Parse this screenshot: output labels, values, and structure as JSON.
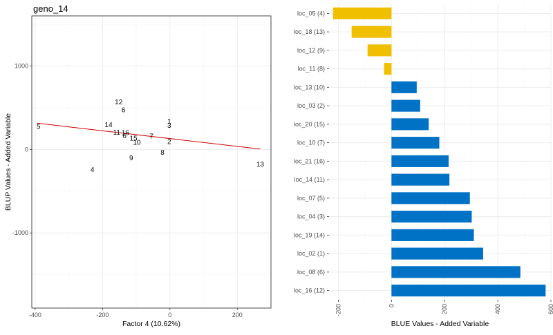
{
  "chart_data": [
    {
      "type": "scatter",
      "title": "geno_14",
      "xlabel": "Factor 4 (10.62%)",
      "ylabel": "BLUP Values - Added Variable",
      "xlim": [
        -410,
        300
      ],
      "ylim": [
        -1900,
        1600
      ],
      "xticks": [
        -400,
        -200,
        0,
        200
      ],
      "yticks": [
        -1000,
        0,
        1000
      ],
      "xtick_labels": [
        "-400",
        "-200",
        "0",
        "200"
      ],
      "ytick_labels": [
        "-1000",
        "0",
        "1000"
      ],
      "grid": true,
      "points": [
        {
          "label": "1",
          "x": -2,
          "y": 340
        },
        {
          "label": "2",
          "x": -2,
          "y": 95
        },
        {
          "label": "3",
          "x": -2,
          "y": 290
        },
        {
          "label": "4",
          "x": -230,
          "y": -240
        },
        {
          "label": "5",
          "x": -390,
          "y": 275
        },
        {
          "label": "6",
          "x": -135,
          "y": 165
        },
        {
          "label": "7",
          "x": -55,
          "y": 160
        },
        {
          "label": "8",
          "x": -22,
          "y": -35
        },
        {
          "label": "9",
          "x": -115,
          "y": -100
        },
        {
          "label": "10",
          "x": -98,
          "y": 85
        },
        {
          "label": "11",
          "x": -158,
          "y": 205
        },
        {
          "label": "12",
          "x": -152,
          "y": 570
        },
        {
          "label": "13",
          "x": 268,
          "y": -175
        },
        {
          "label": "14",
          "x": -182,
          "y": 295
        },
        {
          "label": "15",
          "x": -108,
          "y": 135
        },
        {
          "label": "16",
          "x": -132,
          "y": 200
        },
        {
          "label": "6",
          "x": -138,
          "y": 475
        }
      ],
      "fit_line": {
        "x": [
          -395,
          268
        ],
        "y": [
          315,
          5
        ],
        "color": "#cc0000"
      }
    },
    {
      "type": "bar",
      "orientation": "horizontal",
      "xlabel": "BLUE Values - Added Variable",
      "ylabel": "",
      "xlim": [
        -235,
        600
      ],
      "xticks": [
        -200,
        0,
        200,
        400,
        600
      ],
      "xtick_labels": [
        "-200",
        "0",
        "200",
        "400",
        "600"
      ],
      "grid": true,
      "colors": {
        "positive": "#0072c6",
        "negative": "#f0c000"
      },
      "categories": [
        "loc_05 (4)",
        "loc_18 (13)",
        "loc_12 (9)",
        "loc_11 (8)",
        "loc_13 (10)",
        "loc_03 (2)",
        "loc_20 (15)",
        "loc_10 (7)",
        "loc_21 (16)",
        "loc_14 (11)",
        "loc_07 (5)",
        "loc_04 (3)",
        "loc_19 (14)",
        "loc_02 (1)",
        "loc_08 (6)",
        "loc_16 (12)"
      ],
      "values": [
        -220,
        -150,
        -90,
        -28,
        95,
        108,
        140,
        180,
        215,
        218,
        295,
        302,
        310,
        345,
        485,
        580
      ]
    }
  ]
}
